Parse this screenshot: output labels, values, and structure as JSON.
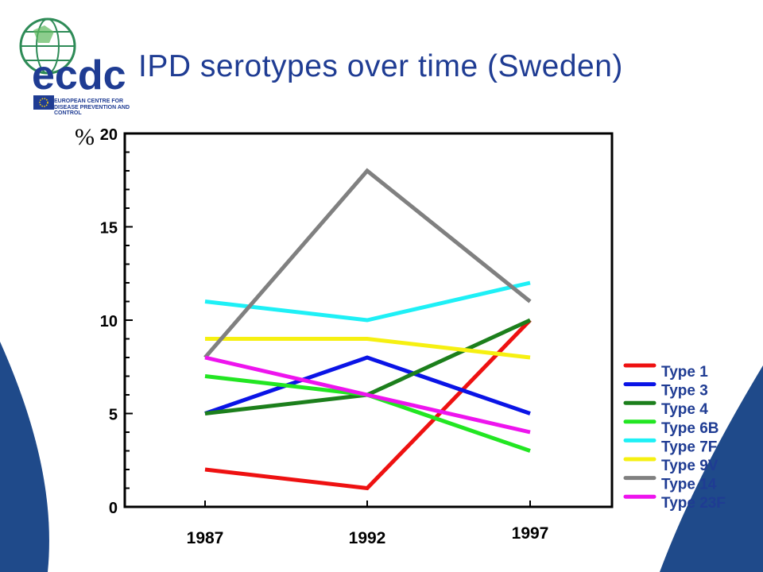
{
  "slide": {
    "title": "IPD serotypes over time (Sweden)",
    "logo": {
      "text": "ecdc",
      "subtitle_lines": [
        "EUROPEAN CENTRE FOR",
        "DISEASE PREVENTION AND",
        "CONTROL"
      ]
    },
    "colors": {
      "title": "#1f3c93",
      "background_wave": "#1f4a8a",
      "logo_green": "#2e8b57"
    }
  },
  "chart_data": {
    "type": "line",
    "ylabel": "%",
    "categories": [
      "1987",
      "1992",
      "1997"
    ],
    "ylim": [
      0,
      20
    ],
    "yticks": [
      0,
      5,
      10,
      15,
      20
    ],
    "ytick_labels": [
      "0",
      "5",
      "10",
      "15",
      "20"
    ],
    "grid": false,
    "legend_position": "right",
    "series": [
      {
        "name": "Type 1",
        "color": "#ee1111",
        "values": [
          2,
          1,
          10
        ]
      },
      {
        "name": "Type 3",
        "color": "#0a14e6",
        "values": [
          5,
          8,
          5
        ]
      },
      {
        "name": "Type 4",
        "color": "#1c7f1c",
        "values": [
          5,
          6,
          10
        ]
      },
      {
        "name": "Type 6B",
        "color": "#22e622",
        "values": [
          7,
          6,
          3
        ]
      },
      {
        "name": "Type 7F",
        "color": "#1ef0f6",
        "values": [
          11,
          10,
          12
        ]
      },
      {
        "name": "Type 9V",
        "color": "#f6f011",
        "values": [
          9,
          9,
          8
        ]
      },
      {
        "name": "Type 14",
        "color": "#808080",
        "values": [
          8,
          18,
          11
        ]
      },
      {
        "name": "Type 23F",
        "color": "#ee14ee",
        "values": [
          8,
          6,
          4
        ]
      }
    ]
  }
}
